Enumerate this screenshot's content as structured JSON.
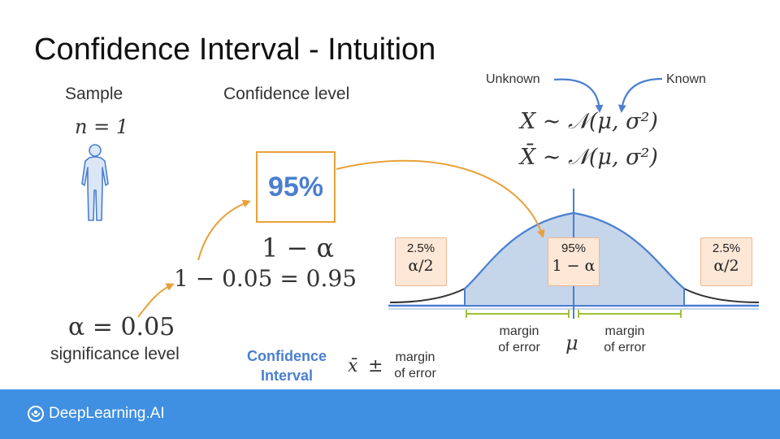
{
  "title": "Confidence Interval - Intuition",
  "sample": {
    "heading": "Sample",
    "formula": "n = 1"
  },
  "confidence": {
    "heading": "Confidence level",
    "box_value": "95%",
    "one_minus_alpha": "1 − α",
    "calc": "1 − 0.05 = 0.95"
  },
  "alpha": {
    "formula": "α  = 0.05",
    "caption": "significance level"
  },
  "params": {
    "unknown": "Unknown",
    "known": "Known"
  },
  "distributions": {
    "population": "X ∼ 𝒩(μ, σ²)",
    "sample_mean": "X̄ ∼ 𝒩(μ, σ²)"
  },
  "curve": {
    "left_tail": {
      "pct": "2.5%",
      "sym": "α/2"
    },
    "center": {
      "pct": "95%",
      "sym": "1 − α"
    },
    "right_tail": {
      "pct": "2.5%",
      "sym": "α/2"
    },
    "margin_left": [
      "margin",
      "of error"
    ],
    "margin_right": [
      "margin",
      "of error"
    ],
    "mu": "μ",
    "shade_color": "#c5d5ea",
    "curve_color": "#4a7fd0"
  },
  "interval": {
    "label_line1": "Confidence",
    "label_line2": "Interval",
    "xbar": "x̄",
    "pm": "±",
    "margin": [
      "margin",
      "of error"
    ]
  },
  "footer": {
    "brand": "DeepLearning.AI",
    "color": "#3f8fe3"
  }
}
